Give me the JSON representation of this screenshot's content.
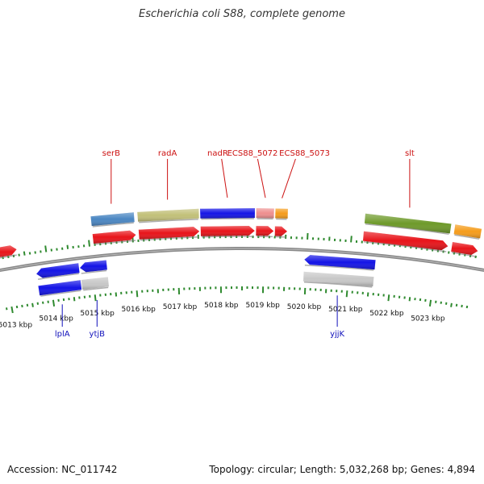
{
  "title": "Escherichia coli S88, complete genome",
  "footer": {
    "accession": "Accession: NC_011742",
    "topology": "Topology: circular; Length: 5,032,268 bp; Genes: 4,894"
  },
  "chart_data": {
    "type": "genome-map",
    "unit": "kbp",
    "axis_range_kbp": [
      5012.8,
      5023.9
    ],
    "tick_labels_kbp": [
      5013,
      5014,
      5015,
      5016,
      5017,
      5018,
      5019,
      5020,
      5021,
      5022,
      5023
    ],
    "colors": {
      "forward": "#e8141a",
      "reverse": "#1414e6",
      "grey": "#c8c8c8",
      "steel": "#4a86c2",
      "khaki": "#c2c079",
      "pink": "#ee8f8f",
      "orange": "#f59c1c",
      "olive": "#6e9a2a",
      "label_forward": "#cc1111",
      "label_reverse": "#1111bb",
      "ticks": "#2f8a2f",
      "backbone": "#888888"
    },
    "features": [
      {
        "strand": "forward",
        "track": "gene",
        "start": 5012.75,
        "end": 5013.34,
        "color": "forward",
        "label": ""
      },
      {
        "strand": "forward",
        "track": "gene",
        "start": 5015.1,
        "end": 5016.08,
        "color": "forward",
        "label": ""
      },
      {
        "strand": "forward",
        "track": "gene",
        "start": 5016.15,
        "end": 5017.53,
        "color": "forward",
        "label": ""
      },
      {
        "strand": "forward",
        "track": "gene",
        "start": 5017.56,
        "end": 5018.79,
        "color": "forward",
        "label": ""
      },
      {
        "strand": "forward",
        "track": "gene",
        "start": 5018.82,
        "end": 5019.22,
        "color": "forward",
        "label": ""
      },
      {
        "strand": "forward",
        "track": "gene",
        "start": 5019.25,
        "end": 5019.53,
        "color": "forward",
        "label": ""
      },
      {
        "strand": "forward",
        "track": "gene",
        "start": 5021.27,
        "end": 5023.21,
        "color": "forward",
        "label": ""
      },
      {
        "strand": "forward",
        "track": "gene",
        "start": 5023.3,
        "end": 5023.9,
        "color": "forward",
        "label": ""
      },
      {
        "strand": "forward",
        "track": "cds",
        "start": 5015.1,
        "end": 5016.07,
        "color": "steel",
        "label": "serB"
      },
      {
        "strand": "forward",
        "track": "cds",
        "start": 5016.15,
        "end": 5017.53,
        "color": "khaki",
        "label": "radA"
      },
      {
        "strand": "forward",
        "track": "cds",
        "start": 5017.56,
        "end": 5018.79,
        "color": "reverse",
        "label": "nadR"
      },
      {
        "strand": "forward",
        "track": "cds",
        "start": 5018.82,
        "end": 5019.22,
        "color": "pink",
        "label": "ECS88_5072"
      },
      {
        "strand": "forward",
        "track": "cds",
        "start": 5019.25,
        "end": 5019.53,
        "color": "orange",
        "label": "ECS88_5073"
      },
      {
        "strand": "forward",
        "track": "cds",
        "start": 5021.27,
        "end": 5023.21,
        "color": "olive",
        "label": "slt"
      },
      {
        "strand": "forward",
        "track": "cds",
        "start": 5023.3,
        "end": 5023.9,
        "color": "orange",
        "label": ""
      },
      {
        "strand": "reverse",
        "track": "gene",
        "start": 5013.7,
        "end": 5014.7,
        "color": "reverse",
        "label": ""
      },
      {
        "strand": "reverse",
        "track": "gene",
        "start": 5014.72,
        "end": 5015.35,
        "color": "reverse",
        "label": ""
      },
      {
        "strand": "reverse",
        "track": "gene",
        "start": 5019.95,
        "end": 5021.6,
        "color": "reverse",
        "label": ""
      },
      {
        "strand": "reverse",
        "track": "cds",
        "start": 5013.7,
        "end": 5014.7,
        "color": "reverse",
        "label": "lplA"
      },
      {
        "strand": "reverse",
        "track": "cds",
        "start": 5014.72,
        "end": 5015.35,
        "color": "grey",
        "label": "ytjB"
      },
      {
        "strand": "reverse",
        "track": "cds",
        "start": 5019.95,
        "end": 5021.6,
        "color": "grey",
        "label": "yjjK"
      }
    ]
  }
}
